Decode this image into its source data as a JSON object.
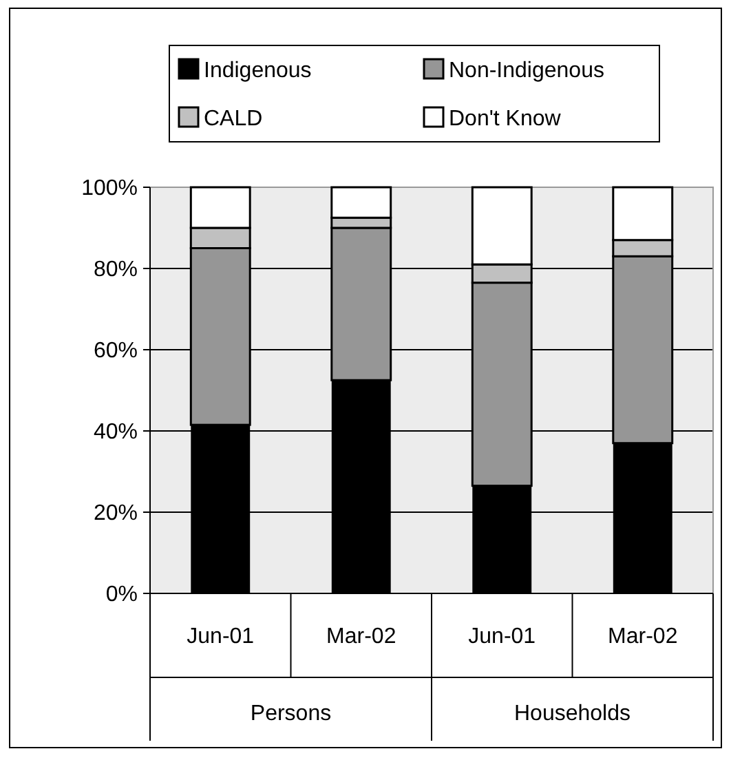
{
  "chart_data": {
    "type": "bar",
    "stacked": true,
    "categories": [
      "Jun-01",
      "Mar-02",
      "Jun-01",
      "Mar-02"
    ],
    "series": [
      {
        "name": "Indigenous",
        "color": "#000000",
        "values": [
          41.5,
          52.5,
          26.5,
          37
        ]
      },
      {
        "name": "Non-Indigenous",
        "color": "#969696",
        "values": [
          43.5,
          37.5,
          50,
          46
        ]
      },
      {
        "name": "CALD",
        "color": "#c0c0c0",
        "values": [
          5,
          2.5,
          4.5,
          4
        ]
      },
      {
        "name": "Don't Know",
        "color": "#ffffff",
        "values": [
          10,
          7.5,
          19,
          13
        ]
      }
    ],
    "ylim": [
      0,
      100
    ],
    "yticks": [
      {
        "value": 0,
        "label": "0%"
      },
      {
        "value": 20,
        "label": "20%"
      },
      {
        "value": 40,
        "label": "40%"
      },
      {
        "value": 60,
        "label": "60%"
      },
      {
        "value": 80,
        "label": "80%"
      },
      {
        "value": 100,
        "label": "100%"
      }
    ],
    "grid": "y",
    "legend": "top",
    "annotations": [
      "Persons",
      "Households"
    ]
  }
}
